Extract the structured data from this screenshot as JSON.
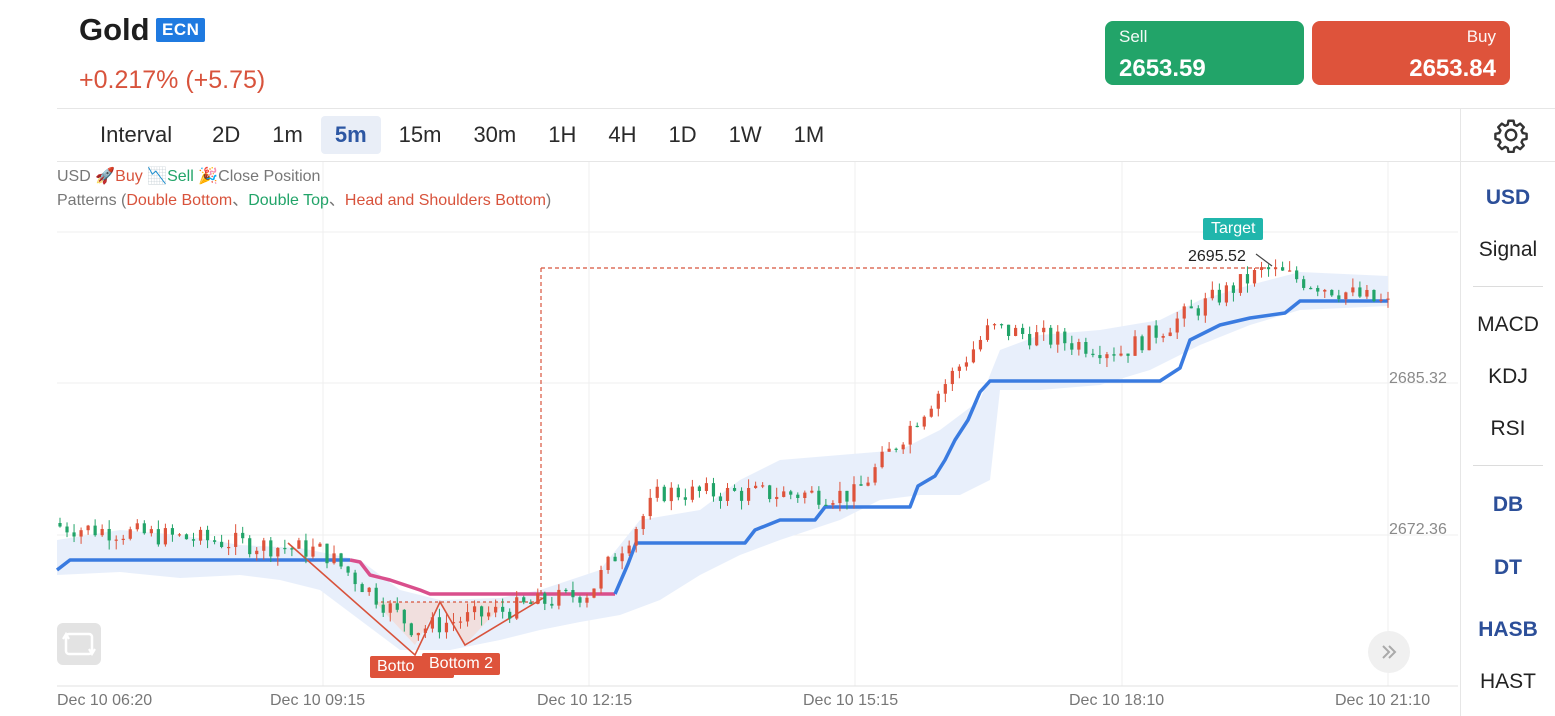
{
  "header": {
    "title": "Gold",
    "badge": "ECN",
    "change": "+0.217% (+5.75)",
    "sell": {
      "label": "Sell",
      "price": "2653.59"
    },
    "buy": {
      "label": "Buy",
      "price": "2653.84"
    }
  },
  "intervals": {
    "label": "Interval",
    "items": [
      "2D",
      "1m",
      "5m",
      "15m",
      "30m",
      "1H",
      "4H",
      "1D",
      "1W",
      "1M"
    ],
    "active": "5m"
  },
  "sidebar": {
    "currency": "USD",
    "signal": "Signal",
    "indicators": [
      "MACD",
      "KDJ",
      "RSI"
    ],
    "patterns": [
      "DB",
      "DT",
      "HASB",
      "HAST"
    ]
  },
  "legend": {
    "currency": "USD",
    "buy": "Buy",
    "sell": "Sell",
    "close": "Close Position",
    "patterns_prefix": "Patterns (",
    "pattern_double_bottom": "Double Bottom",
    "separator": "、",
    "pattern_double_top": "Double Top",
    "pattern_hasb": "Head and Shoulders Bottom",
    "patterns_suffix": ")"
  },
  "chart_data": {
    "type": "candlestick",
    "price_labels": [
      "2685.32",
      "2672.36"
    ],
    "time_labels": [
      "Dec 10 06:20",
      "Dec 10 09:15",
      "Dec 10 12:15",
      "Dec 10 15:15",
      "Dec 10 18:10",
      "Dec 10 21:10"
    ],
    "target_label": "Target",
    "target_price": "2695.52",
    "pattern_labels": [
      "Botto",
      "Bottom 2"
    ],
    "key_prices": [
      {
        "time": "Dec 10 06:20",
        "price": 2673.1
      },
      {
        "time": "Dec 10 09:15",
        "price": 2671.0
      },
      {
        "time": "Dec 10 10:30",
        "price": 2664.3
      },
      {
        "time": "Dec 10 12:15",
        "price": 2667.5
      },
      {
        "time": "Dec 10 13:30",
        "price": 2676.0
      },
      {
        "time": "Dec 10 15:15",
        "price": 2675.8
      },
      {
        "time": "Dec 10 16:30",
        "price": 2690.0
      },
      {
        "time": "Dec 10 18:10",
        "price": 2688.0
      },
      {
        "time": "Dec 10 19:30",
        "price": 2695.0
      },
      {
        "time": "Dec 10 21:10",
        "price": 2692.0
      }
    ],
    "colors": {
      "up": "#de533b",
      "down": "#22a469",
      "trend": "#3a7be0",
      "trend_alt": "#d94f8c",
      "cloud": "#e6eefb"
    }
  }
}
